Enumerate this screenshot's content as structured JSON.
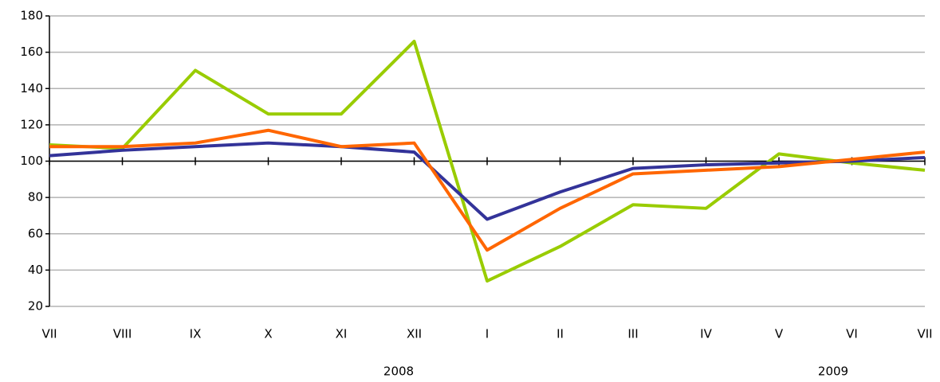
{
  "chart_data": {
    "type": "line",
    "categories": [
      "VII",
      "VIII",
      "IX",
      "X",
      "XI",
      "XII",
      "I",
      "II",
      "III",
      "IV",
      "V",
      "VI",
      "VII"
    ],
    "group_labels": [
      "2008",
      "2009"
    ],
    "series": [
      {
        "color": "#99cc00",
        "values": [
          109,
          107,
          150,
          126,
          126,
          166,
          34,
          53,
          76,
          74,
          104,
          99,
          95
        ]
      },
      {
        "color": "#333399",
        "values": [
          103,
          106,
          108,
          110,
          108,
          105,
          68,
          83,
          96,
          98,
          99,
          100,
          102
        ]
      },
      {
        "color": "#ff6600",
        "values": [
          108,
          108,
          110,
          117,
          108,
          110,
          51,
          74,
          93,
          95,
          97,
          101,
          105
        ]
      }
    ],
    "ylim": [
      20,
      180
    ],
    "yticks": [
      20,
      40,
      60,
      80,
      100,
      120,
      140,
      160,
      180
    ],
    "grid": true,
    "x_axis_crossing": 100
  }
}
